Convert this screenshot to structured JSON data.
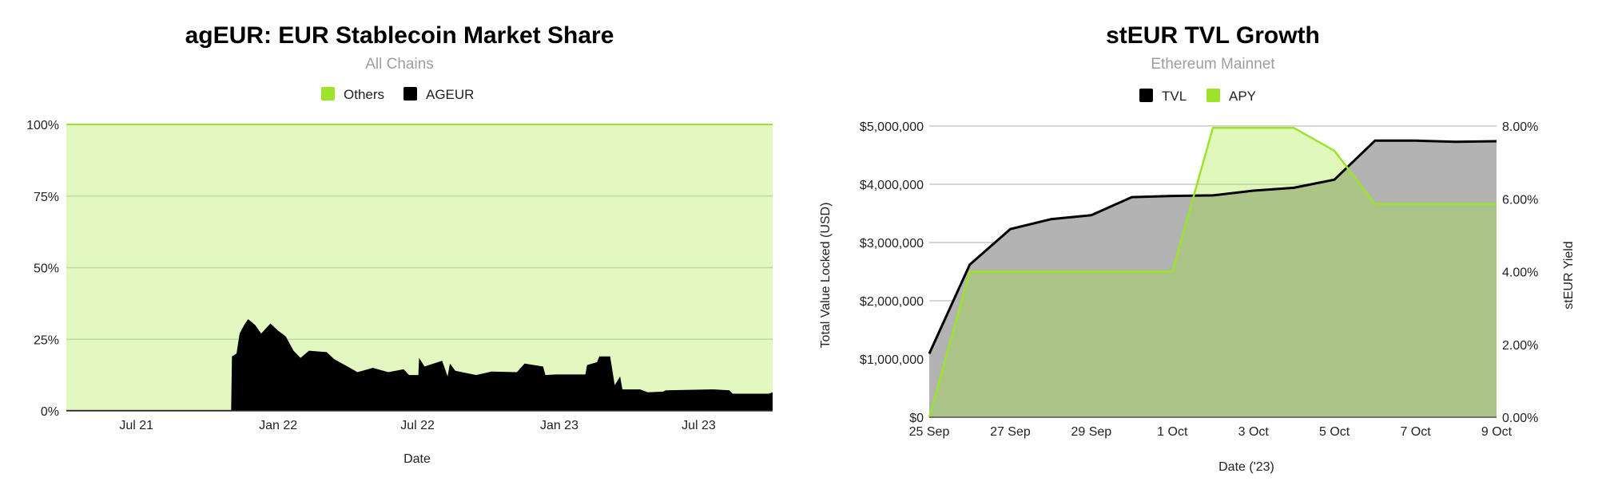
{
  "colors": {
    "green": "#9de32c",
    "green_fill": "#e2f8c0",
    "black": "#000000",
    "tvl_fill": "#b3b3b3",
    "grid": "#c8c8c8"
  },
  "chart_data": [
    {
      "type": "area",
      "stacked": true,
      "percent": true,
      "title": "agEUR: EUR Stablecoin Market Share",
      "subtitle": "All Chains",
      "xlabel": "Date",
      "ylabel": "",
      "ylim": [
        0,
        100
      ],
      "yticks": [
        "0%",
        "25%",
        "50%",
        "75%",
        "100%"
      ],
      "ytick_values": [
        0,
        25,
        50,
        75,
        100
      ],
      "xticks": [
        "Jul 21",
        "Jan 22",
        "Jul 22",
        "Jan 23",
        "Jul 23"
      ],
      "xtick_dates": [
        "2021-07-01",
        "2022-01-01",
        "2022-07-01",
        "2023-01-01",
        "2023-07-01"
      ],
      "xlim": [
        "2021-04-01",
        "2023-10-05"
      ],
      "grid": true,
      "legend_placement": "top",
      "legend": [
        {
          "name": "Others",
          "color": "#9de32c"
        },
        {
          "name": "AGEUR",
          "color": "#000000"
        }
      ],
      "series": [
        {
          "name": "AGEUR",
          "color": "#000000",
          "x": [
            "2021-04-01",
            "2021-11-01",
            "2021-11-02",
            "2021-11-08",
            "2021-11-12",
            "2021-11-18",
            "2021-11-23",
            "2021-12-02",
            "2021-12-10",
            "2021-12-22",
            "2022-01-01",
            "2022-01-11",
            "2022-01-21",
            "2022-01-30",
            "2022-02-10",
            "2022-03-05",
            "2022-03-15",
            "2022-04-01",
            "2022-04-14",
            "2022-05-04",
            "2022-05-24",
            "2022-06-13",
            "2022-06-20",
            "2022-07-02",
            "2022-07-03",
            "2022-07-10",
            "2022-08-02",
            "2022-08-09",
            "2022-08-12",
            "2022-08-19",
            "2022-09-15",
            "2022-10-05",
            "2022-11-07",
            "2022-11-17",
            "2022-12-11",
            "2022-12-14",
            "2022-12-28",
            "2023-02-04",
            "2023-02-06",
            "2023-02-19",
            "2023-02-22",
            "2023-03-08",
            "2023-03-14",
            "2023-03-21",
            "2023-03-24",
            "2023-04-16",
            "2023-04-26",
            "2023-05-16",
            "2023-05-19",
            "2023-07-21",
            "2023-08-10",
            "2023-08-14",
            "2023-09-30",
            "2023-10-05"
          ],
          "values": [
            0.3,
            0.3,
            19,
            20,
            27,
            30,
            32,
            30,
            27,
            30.5,
            28,
            26,
            21,
            18.5,
            21,
            20.5,
            18,
            15.5,
            13.5,
            15,
            13.5,
            14.5,
            12.5,
            12.5,
            18.5,
            15.5,
            17.5,
            12,
            16.5,
            14,
            12.5,
            13.7,
            13.5,
            16.5,
            15.5,
            12.5,
            12.7,
            12.7,
            16,
            17,
            19,
            19,
            9,
            12,
            7.5,
            7.5,
            6.5,
            6.7,
            7.2,
            7.5,
            7.2,
            6,
            6,
            6.5
          ]
        },
        {
          "name": "Others",
          "color": "#9de32c",
          "note_values": "100 minus AGEUR"
        }
      ]
    },
    {
      "type": "area",
      "dual_axis": true,
      "title": "stEUR TVL Growth",
      "subtitle": "Ethereum Mainnet",
      "xlabel": "Date ('23)",
      "ylabel": "Total Value Locked (USD)",
      "ylabel_right": "stEUR Yield",
      "ylim": [
        0,
        5000000
      ],
      "ylim_right": [
        0,
        8
      ],
      "yticks": [
        "$0",
        "$1,000,000",
        "$2,000,000",
        "$3,000,000",
        "$4,000,000",
        "$5,000,000"
      ],
      "ytick_values": [
        0,
        1000000,
        2000000,
        3000000,
        4000000,
        5000000
      ],
      "yticks_right": [
        "0.00%",
        "2.00%",
        "4.00%",
        "6.00%",
        "8.00%"
      ],
      "ytick_values_right": [
        0,
        2,
        4,
        6,
        8
      ],
      "categories": [
        "25 Sep",
        "26 Sep",
        "27 Sep",
        "28 Sep",
        "29 Sep",
        "30 Sep",
        "1 Oct",
        "2 Oct",
        "3 Oct",
        "4 Oct",
        "5 Oct",
        "6 Oct",
        "7 Oct",
        "8 Oct",
        "9 Oct"
      ],
      "xticks": [
        "25 Sep",
        "27 Sep",
        "29 Sep",
        "1 Oct",
        "3 Oct",
        "5 Oct",
        "7 Oct",
        "9 Oct"
      ],
      "grid": true,
      "legend_placement": "top",
      "legend": [
        {
          "name": "TVL",
          "color": "#000000"
        },
        {
          "name": "APY",
          "color": "#9de32c"
        }
      ],
      "series": [
        {
          "name": "TVL",
          "axis": "left",
          "color": "#000000",
          "values": [
            1090000,
            2620000,
            3230000,
            3400000,
            3470000,
            3780000,
            3800000,
            3810000,
            3890000,
            3940000,
            4080000,
            4750000,
            4750000,
            4730000,
            4740000
          ]
        },
        {
          "name": "APY",
          "axis": "right",
          "color": "#9de32c",
          "values": [
            0,
            4.0,
            4.0,
            4.0,
            4.0,
            4.0,
            4.0,
            7.95,
            7.95,
            7.95,
            7.32,
            5.86,
            5.86,
            5.86,
            5.86
          ]
        }
      ]
    }
  ]
}
